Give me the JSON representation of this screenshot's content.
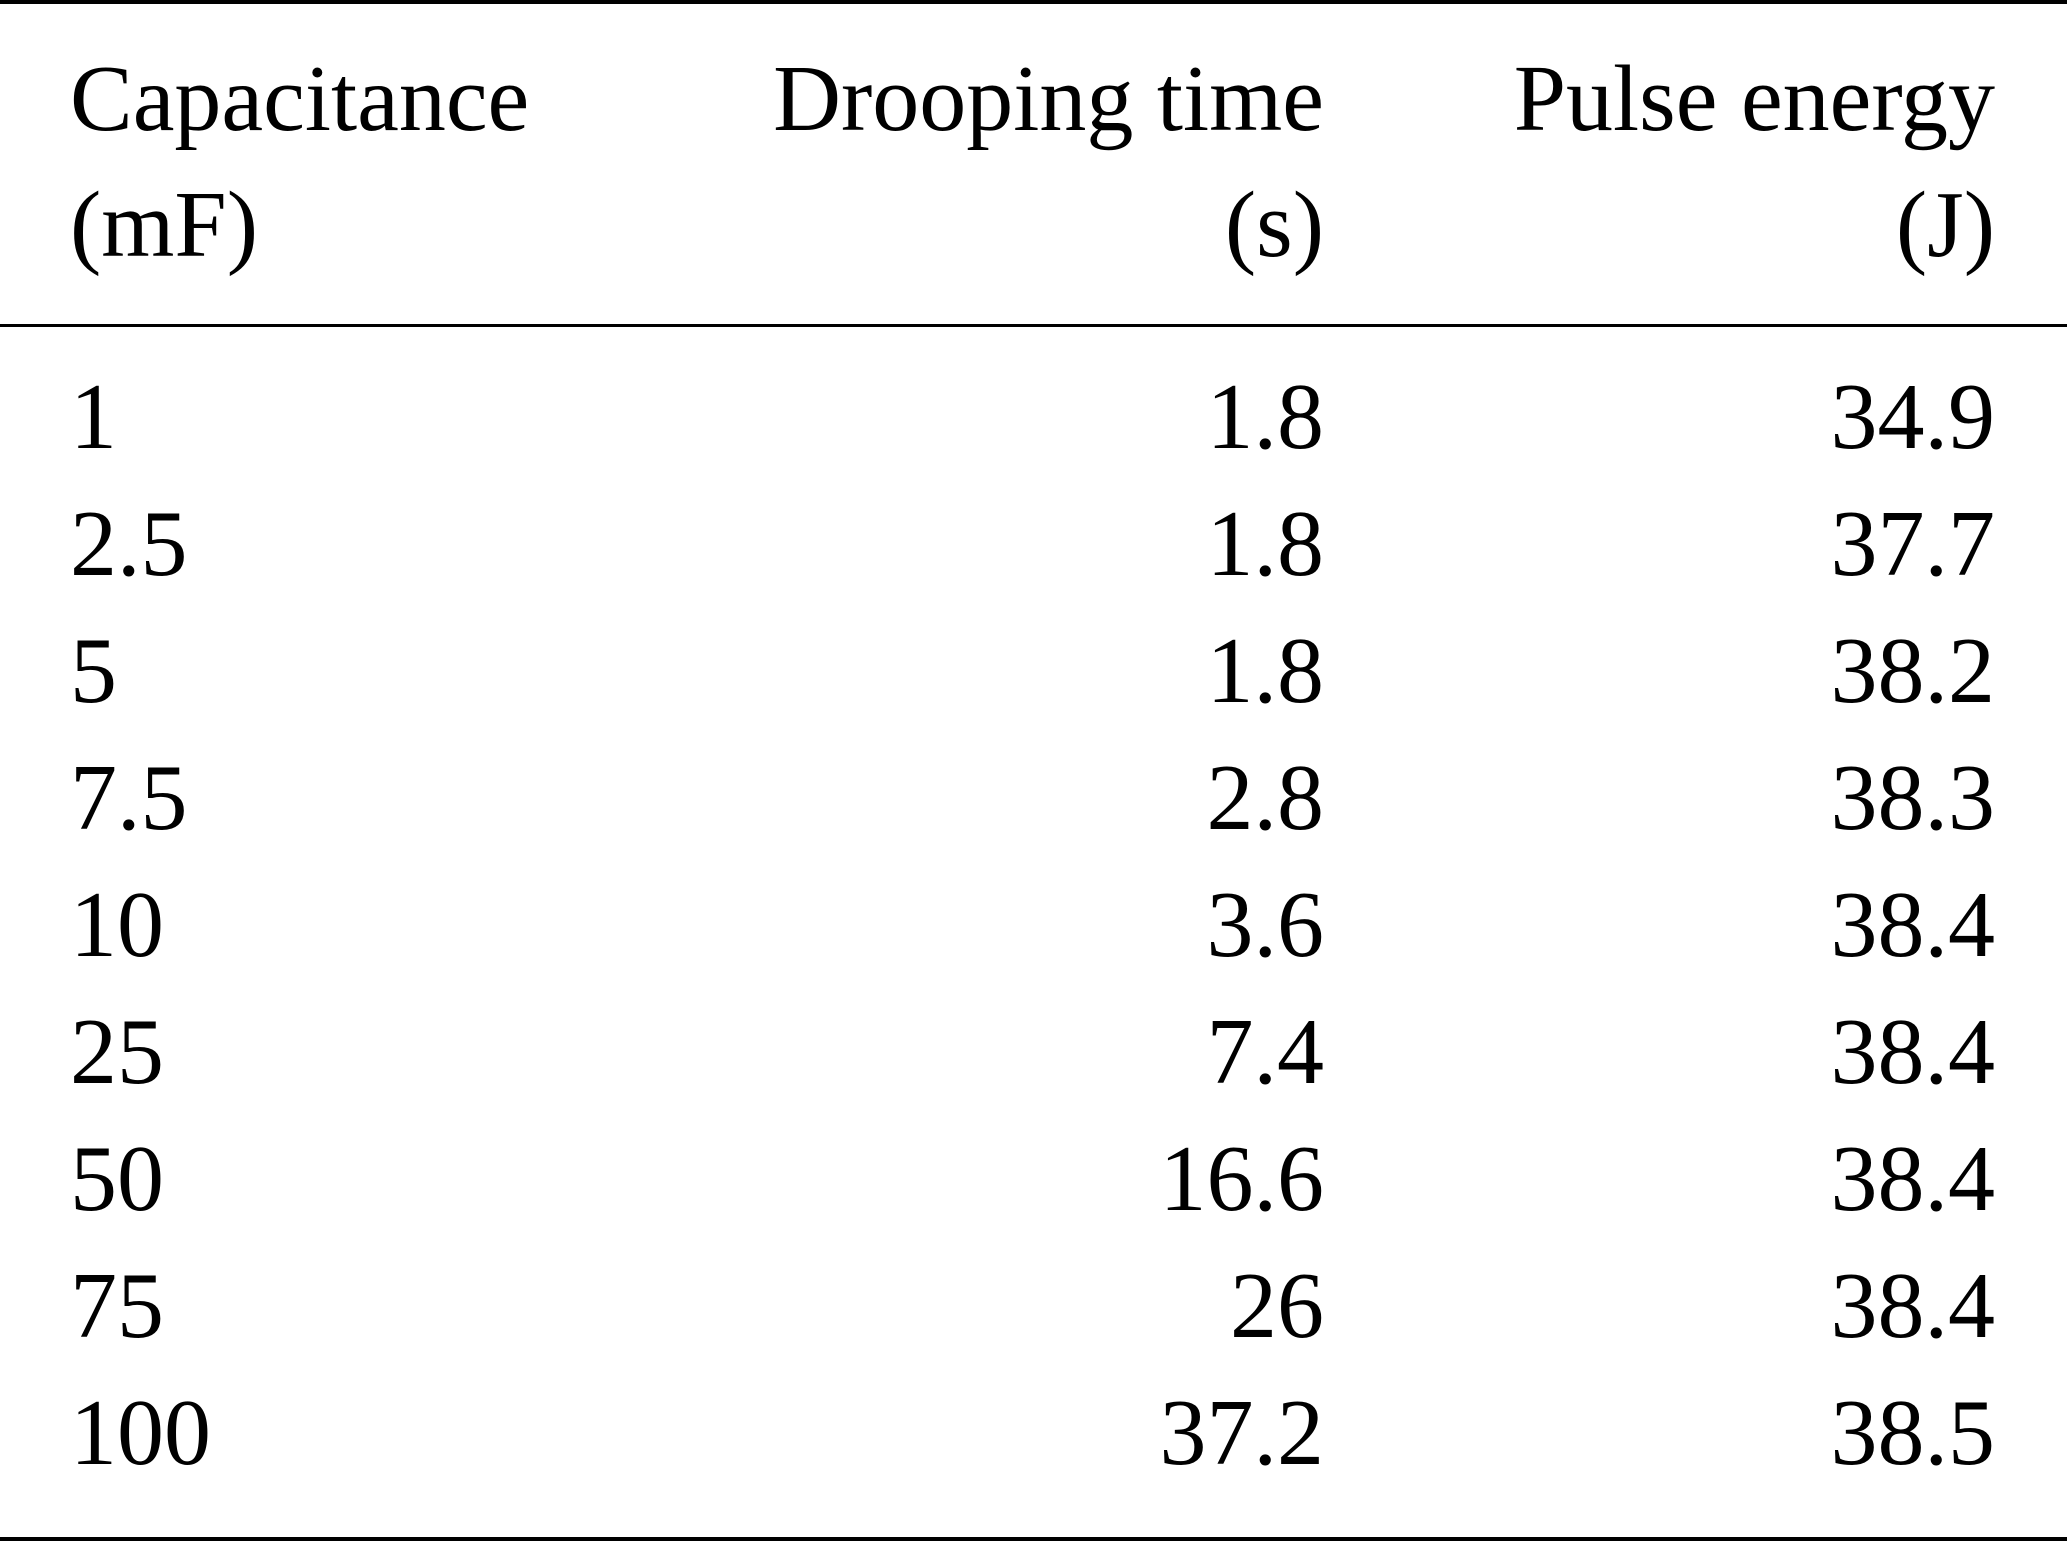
{
  "table": {
    "columns": [
      {
        "line1": "Capacitance",
        "line2": "(mF)"
      },
      {
        "line1": "Drooping time",
        "line2": "(s)"
      },
      {
        "line1": "Pulse energy",
        "line2": "(J)"
      }
    ],
    "rows": [
      [
        "1",
        "1.8",
        "34.9"
      ],
      [
        "2.5",
        "1.8",
        "37.7"
      ],
      [
        "5",
        "1.8",
        "38.2"
      ],
      [
        "7.5",
        "2.8",
        "38.3"
      ],
      [
        "10",
        "3.6",
        "38.4"
      ],
      [
        "25",
        "7.4",
        "38.4"
      ],
      [
        "50",
        "16.6",
        "38.4"
      ],
      [
        "75",
        "26",
        "38.4"
      ],
      [
        "100",
        "37.2",
        "38.5"
      ]
    ]
  }
}
